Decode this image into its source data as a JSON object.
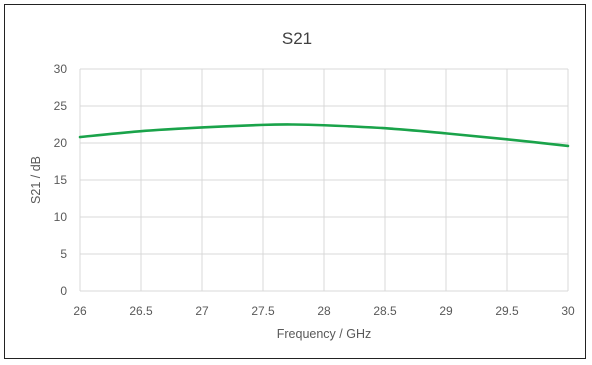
{
  "chart_data": {
    "type": "line",
    "title": "S21",
    "xlabel": "Frequency / GHz",
    "ylabel": "S21 / dB",
    "xlim": [
      26,
      30
    ],
    "ylim": [
      0,
      30
    ],
    "x_ticks": [
      "26",
      "26.5",
      "27",
      "27.5",
      "28",
      "28.5",
      "29",
      "29.5",
      "30"
    ],
    "y_ticks": [
      "0",
      "5",
      "10",
      "15",
      "20",
      "25",
      "30"
    ],
    "grid": true,
    "legend": "none",
    "series": [
      {
        "color": "#1aa34a",
        "x": [
          26,
          26.5,
          27,
          27.5,
          27.75,
          28,
          28.5,
          29,
          29.5,
          30
        ],
        "y": [
          20.8,
          21.6,
          22.1,
          22.45,
          22.5,
          22.4,
          22.0,
          21.3,
          20.5,
          19.6
        ]
      }
    ]
  }
}
